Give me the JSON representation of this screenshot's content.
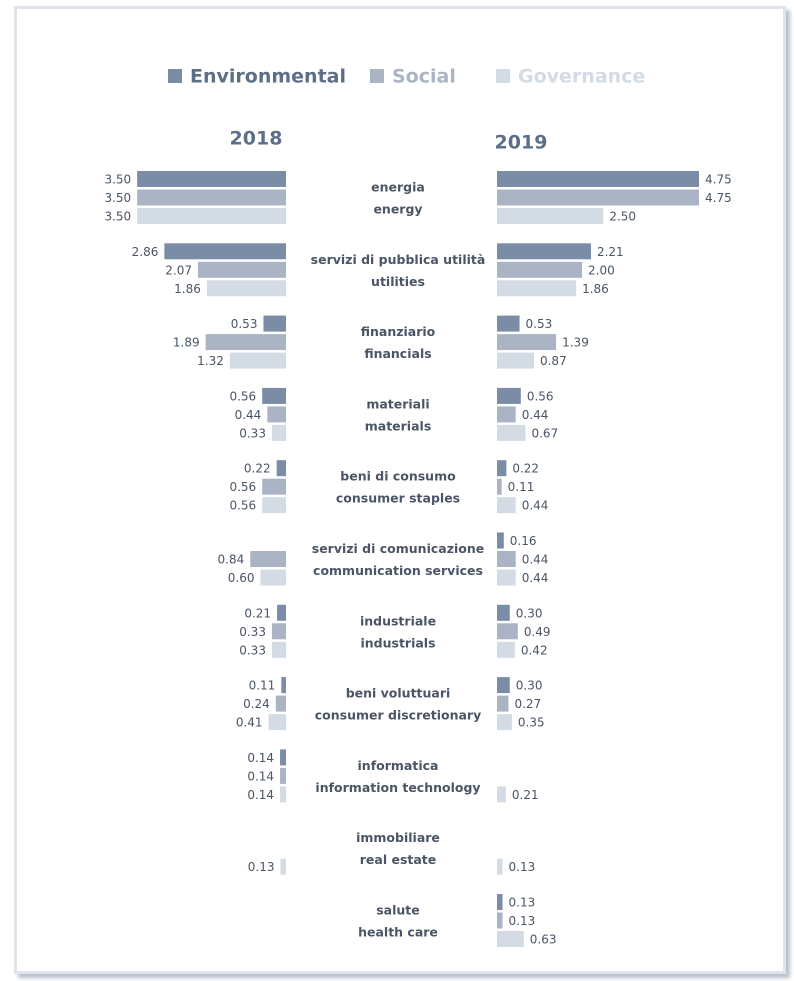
{
  "chart_data": {
    "type": "butterfly",
    "panels": [
      "2018",
      "2019"
    ],
    "categories": [
      [
        "energia",
        "energy"
      ],
      [
        "servizi di pubblica utilità",
        "utilities"
      ],
      [
        "finanziario",
        "financials"
      ],
      [
        "materiali",
        "materials"
      ],
      [
        "beni di consumo",
        "consumer staples"
      ],
      [
        "servizi di comunicazione",
        "communication services"
      ],
      [
        "industriale",
        "industrials"
      ],
      [
        "beni voluttuari",
        "consumer discretionary"
      ],
      [
        "informatica",
        "information technology"
      ],
      [
        "immobiliare",
        "real estate"
      ],
      [
        "salute",
        "health care"
      ]
    ],
    "series": [
      {
        "name": "Environmental",
        "color": "#7a8ca6",
        "values": [
          [
            3.5,
            2.86,
            0.53,
            0.56,
            0.22,
            null,
            0.21,
            0.11,
            0.14,
            null,
            null
          ],
          [
            4.75,
            2.21,
            0.53,
            0.56,
            0.22,
            0.16,
            0.3,
            0.3,
            null,
            null,
            0.13
          ]
        ],
        "value_labels": [
          [
            "3.50",
            "2.86",
            "0.53",
            "0.56",
            "0.22",
            null,
            "0.21",
            "0.11",
            "0.14",
            null,
            null
          ],
          [
            "4.75",
            "2.21",
            "0.53",
            "0.56",
            "0.22",
            "0.16",
            "0.30",
            "0.30",
            null,
            null,
            "0.13"
          ]
        ]
      },
      {
        "name": "Social",
        "color": "#aab4c4",
        "values": [
          [
            3.5,
            2.07,
            1.89,
            0.44,
            0.56,
            0.84,
            0.33,
            0.24,
            0.14,
            null,
            null
          ],
          [
            4.75,
            2.0,
            1.39,
            0.44,
            0.11,
            0.44,
            0.49,
            0.27,
            null,
            null,
            0.13
          ]
        ],
        "value_labels": [
          [
            "3.50",
            "2.07",
            "1.89",
            "0.44",
            "0.56",
            "0.84",
            "0.33",
            "0.24",
            "0.14",
            null,
            null
          ],
          [
            "4.75",
            "2.00",
            "1.39",
            "0.44",
            "0.11",
            "0.44",
            "0.49",
            "0.27",
            null,
            null,
            "0.13"
          ]
        ]
      },
      {
        "name": "Governance",
        "color": "#d3dbe5",
        "values": [
          [
            3.5,
            1.86,
            1.32,
            0.33,
            0.56,
            0.6,
            0.33,
            0.41,
            0.14,
            0.13,
            null
          ],
          [
            2.5,
            1.86,
            0.87,
            0.67,
            0.44,
            0.44,
            0.42,
            0.35,
            0.21,
            0.13,
            0.63
          ]
        ],
        "value_labels": [
          [
            "3.50",
            "1.86",
            "1.32",
            "0.33",
            "0.56",
            "0.60",
            "0.33",
            "0.41",
            "0.14",
            "0.13",
            null
          ],
          [
            "2.50",
            "1.86",
            "0.87",
            "0.67",
            "0.44",
            "0.44",
            "0.42",
            "0.35",
            "0.21",
            "0.13",
            "0.63"
          ]
        ]
      }
    ]
  }
}
